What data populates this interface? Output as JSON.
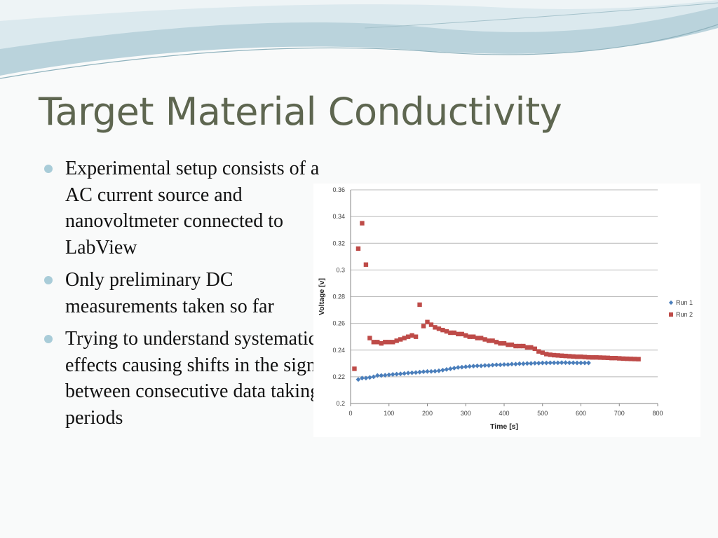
{
  "slide": {
    "title": "Target Material Conductivity",
    "bullets": [
      "Experimental setup consists of a AC current source and nanovoltmeter connected to LabView",
      "Only preliminary DC measurements taken so far",
      "Trying to understand systematic effects causing shifts in the signal between consecutive data taking periods"
    ],
    "colors": {
      "title": "#5e6650",
      "bullet_dot": "#a9ccd8",
      "banner": "#9ec3cf"
    }
  },
  "chart_data": {
    "type": "scatter",
    "title": "",
    "xlabel": "Time [s]",
    "ylabel": "Voltage [v]",
    "xlim": [
      0,
      800
    ],
    "ylim": [
      0.2,
      0.36
    ],
    "x_ticks": [
      0,
      100,
      200,
      300,
      400,
      500,
      600,
      700,
      800
    ],
    "y_ticks": [
      "0.2",
      "0.22",
      "0.24",
      "0.26",
      "0.28",
      "0.3",
      "0.32",
      "0.34",
      "0.36"
    ],
    "grid": "horizontal",
    "legend_position": "right",
    "series": [
      {
        "name": "Run 1",
        "color": "#4a7ebb",
        "marker": "diamond",
        "x": [
          20,
          30,
          40,
          50,
          60,
          70,
          80,
          90,
          100,
          110,
          120,
          130,
          140,
          150,
          160,
          170,
          180,
          190,
          200,
          210,
          220,
          230,
          240,
          250,
          260,
          270,
          280,
          290,
          300,
          310,
          320,
          330,
          340,
          350,
          360,
          370,
          380,
          390,
          400,
          410,
          420,
          430,
          440,
          450,
          460,
          470,
          480,
          490,
          500,
          510,
          520,
          530,
          540,
          550,
          560,
          570,
          580,
          590,
          600,
          610,
          620
        ],
        "y": [
          0.218,
          0.219,
          0.219,
          0.2195,
          0.22,
          0.221,
          0.221,
          0.2212,
          0.2215,
          0.2218,
          0.222,
          0.2222,
          0.2225,
          0.2228,
          0.223,
          0.2232,
          0.2235,
          0.2238,
          0.224,
          0.224,
          0.2242,
          0.2245,
          0.225,
          0.2255,
          0.226,
          0.2265,
          0.227,
          0.2272,
          0.2275,
          0.2278,
          0.228,
          0.2282,
          0.2282,
          0.2285,
          0.2285,
          0.2288,
          0.229,
          0.229,
          0.2292,
          0.2292,
          0.2295,
          0.2295,
          0.2298,
          0.2298,
          0.23,
          0.23,
          0.2302,
          0.2302,
          0.2304,
          0.2304,
          0.2305,
          0.2305,
          0.2305,
          0.2306,
          0.2306,
          0.2305,
          0.2305,
          0.2304,
          0.2304,
          0.2304,
          0.2304
        ]
      },
      {
        "name": "Run 2",
        "color": "#be4b48",
        "marker": "square",
        "x": [
          10,
          20,
          30,
          40,
          50,
          60,
          70,
          80,
          90,
          100,
          110,
          120,
          130,
          140,
          150,
          160,
          170,
          180,
          190,
          200,
          210,
          220,
          230,
          240,
          250,
          260,
          270,
          280,
          290,
          300,
          310,
          320,
          330,
          340,
          350,
          360,
          370,
          380,
          390,
          400,
          410,
          420,
          430,
          440,
          450,
          460,
          470,
          480,
          490,
          500,
          510,
          520,
          530,
          540,
          550,
          560,
          570,
          580,
          590,
          600,
          610,
          620,
          630,
          640,
          650,
          660,
          670,
          680,
          690,
          700,
          710,
          720,
          730,
          740,
          750
        ],
        "y": [
          0.226,
          0.316,
          0.335,
          0.304,
          0.249,
          0.246,
          0.246,
          0.245,
          0.246,
          0.246,
          0.246,
          0.247,
          0.248,
          0.249,
          0.25,
          0.251,
          0.25,
          0.274,
          0.258,
          0.261,
          0.259,
          0.257,
          0.256,
          0.255,
          0.254,
          0.253,
          0.253,
          0.252,
          0.252,
          0.251,
          0.25,
          0.25,
          0.249,
          0.249,
          0.248,
          0.247,
          0.247,
          0.246,
          0.245,
          0.245,
          0.244,
          0.244,
          0.243,
          0.243,
          0.243,
          0.242,
          0.242,
          0.241,
          0.239,
          0.238,
          0.237,
          0.2365,
          0.2362,
          0.236,
          0.2358,
          0.2356,
          0.2354,
          0.2352,
          0.235,
          0.235,
          0.2348,
          0.2346,
          0.2345,
          0.2345,
          0.2344,
          0.2343,
          0.2342,
          0.234,
          0.234,
          0.2338,
          0.2336,
          0.2335,
          0.2334,
          0.2333,
          0.2332
        ]
      }
    ]
  }
}
